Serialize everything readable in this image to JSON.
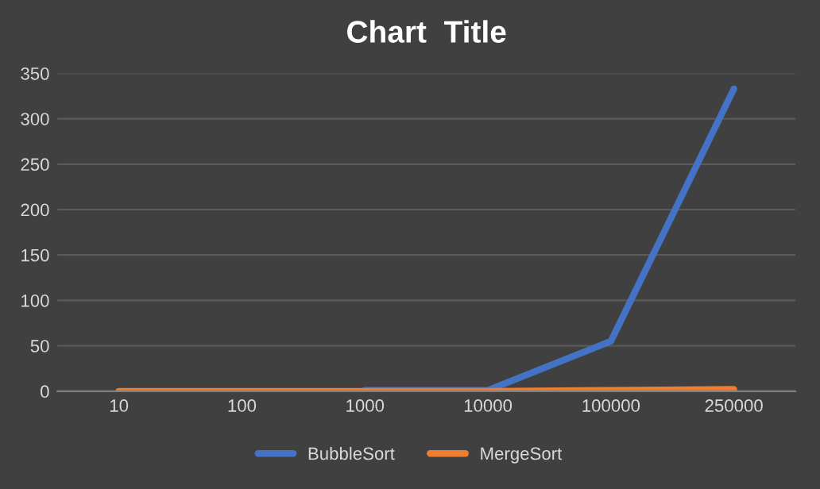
{
  "chart_data": {
    "type": "line",
    "title": "Chart  Title",
    "categories": [
      "10",
      "100",
      "1000",
      "10000",
      "100000",
      "250000"
    ],
    "series": [
      {
        "name": "BubbleSort",
        "color": "#4472c4",
        "values": [
          null,
          null,
          1,
          1,
          55,
          333
        ]
      },
      {
        "name": "MergeSort",
        "color": "#ed7d31",
        "values": [
          0,
          0,
          0,
          0,
          1,
          2
        ]
      }
    ],
    "ylim": [
      0,
      350
    ],
    "yticks": [
      0,
      50,
      100,
      150,
      200,
      250,
      300,
      350
    ],
    "grid": "y",
    "legend": "bottom",
    "marker": "none",
    "line_style": "solid"
  }
}
